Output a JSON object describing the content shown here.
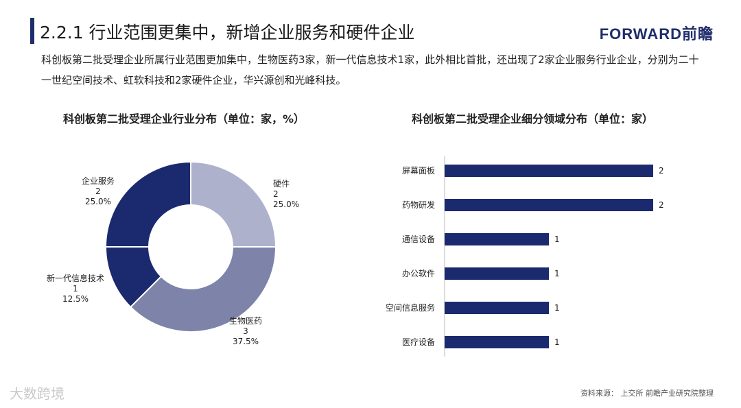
{
  "header": {
    "title": "2.2.1 行业范围更集中，新增企业服务和硬件企业",
    "brand": "FORWARD前瞻"
  },
  "intro": "科创板第二批受理企业所属行业范围更加集中，生物医药3家，新一代信息技术1家，此外相比首批，还出现了2家企业服务行业企业，分别为二十一世纪空间技术、虹软科技和2家硬件企业，华兴源创和光峰科技。",
  "footer": {
    "source": "资料来源：  上交所  前瞻产业研究院整理",
    "corner_mark": "大数跨境"
  },
  "colors": {
    "navy": "#1b2a6e",
    "light": "#aeb1cc",
    "mid": "#7e83aa"
  },
  "chart_data": [
    {
      "type": "pie",
      "title": "科创板第二批受理企业行业分布（单位：家，%）",
      "slices": [
        {
          "name": "硬件",
          "value": 2,
          "percent": "25.0%",
          "color": "#aeb1cc"
        },
        {
          "name": "生物医药",
          "value": 3,
          "percent": "37.5%",
          "color": "#7e83aa"
        },
        {
          "name": "新一代信息技术",
          "value": 1,
          "percent": "12.5%",
          "color": "#1b2a6e"
        },
        {
          "name": "企业服务",
          "value": 2,
          "percent": "25.0%",
          "color": "#1b2a6e"
        }
      ]
    },
    {
      "type": "bar",
      "orientation": "horizontal",
      "title": "科创板第二批受理企业细分领域分布（单位：家）",
      "categories": [
        "屏幕面板",
        "药物研发",
        "通信设备",
        "办公软件",
        "空间信息服务",
        "医疗设备"
      ],
      "values": [
        2,
        2,
        1,
        1,
        1,
        1
      ],
      "xlim": [
        0,
        2
      ],
      "color": "#1b2a6e"
    }
  ]
}
